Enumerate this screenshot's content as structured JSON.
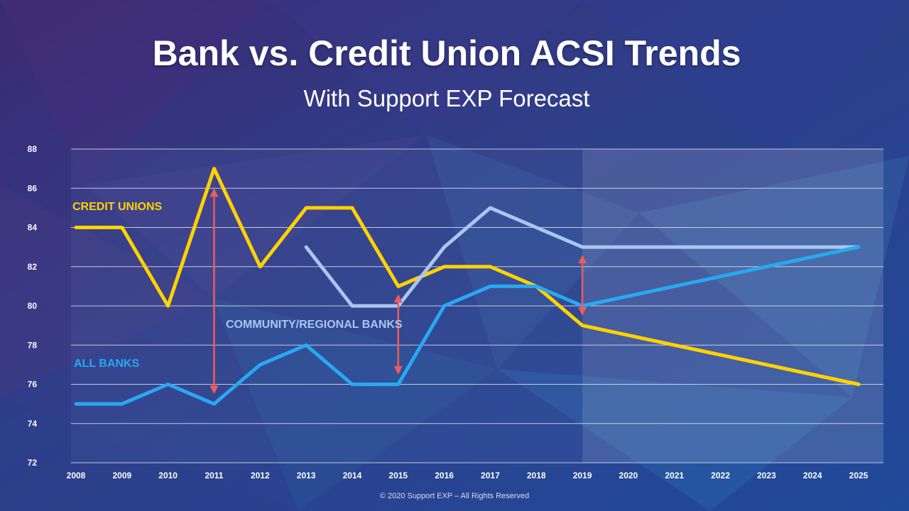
{
  "slide": {
    "footer": "© 2020 Support EXP – All Rights Reserved"
  },
  "colors": {
    "credit_unions": "#ffd200",
    "all_banks": "#29a8f0",
    "community_regional_banks": "#a9c6f0",
    "gap_arrows": "#ef5b5b",
    "gridlines": "#e6e9f5"
  },
  "chart_data": {
    "type": "line",
    "title": "Bank vs. Credit Union ACSI Trends",
    "subtitle": "With Support EXP Forecast",
    "x": [
      "2008",
      "2009",
      "2010",
      "2011",
      "2012",
      "2013",
      "2014",
      "2015",
      "2016",
      "2017",
      "2018",
      "2019",
      "2020",
      "2021",
      "2022",
      "2023",
      "2024",
      "2025"
    ],
    "ylim": [
      72,
      88
    ],
    "yticks": [
      72,
      74,
      76,
      78,
      80,
      82,
      84,
      86,
      88
    ],
    "grid": true,
    "forecast_start": "2019",
    "series": [
      {
        "name": "CREDIT UNIONS",
        "values": [
          84,
          84,
          80,
          87,
          82,
          85,
          85,
          81,
          82,
          82,
          81,
          79,
          null,
          null,
          null,
          null,
          null,
          76
        ]
      },
      {
        "name": "ALL BANKS",
        "values": [
          75,
          75,
          76,
          75,
          77,
          78,
          76,
          76,
          80,
          81,
          81,
          80,
          null,
          null,
          null,
          null,
          null,
          83
        ]
      },
      {
        "name": "COMMUNITY/REGIONAL BANKS",
        "values": [
          null,
          null,
          null,
          null,
          null,
          83,
          80,
          80,
          83,
          85,
          84,
          83,
          null,
          null,
          null,
          null,
          null,
          83
        ]
      }
    ],
    "annotations": [
      {
        "type": "double-arrow",
        "x": "2011",
        "from": 75.5,
        "to": 86
      },
      {
        "type": "double-arrow",
        "x": "2015",
        "from": 76.5,
        "to": 80.6
      },
      {
        "type": "double-arrow",
        "x": "2019",
        "from": 79.5,
        "to": 82.6
      }
    ]
  }
}
